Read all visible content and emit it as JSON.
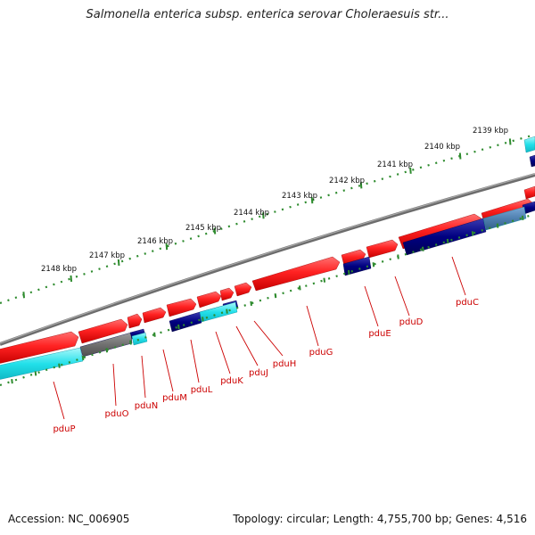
{
  "title": "Salmonella enterica subsp. enterica serovar Choleraesuis str...",
  "footer": {
    "accession": "Accession: NC_006905",
    "summary": "Topology: circular; Length: 4,755,700 bp; Genes: 4,516"
  },
  "colors": {
    "backbone": "#7f7f7f",
    "cds_forward": "#ff2222",
    "cds_reverse": "#000080",
    "blast_light": "#22e0ea",
    "blast_steel": "#4f80b0",
    "other_gray": "#707070",
    "ruler": "#2e8b2e",
    "gene_label": "#cc0000"
  },
  "ruler_labels": [
    "2139 kbp",
    "2140 kbp",
    "2141 kbp",
    "2142 kbp",
    "2143 kbp",
    "2144 kbp",
    "2145 kbp",
    "2146 kbp",
    "2147 kbp",
    "2148 kbp"
  ],
  "genes": [
    "pduP",
    "pduO",
    "pduN",
    "pduM",
    "pduL",
    "pduK",
    "pduJ",
    "pduH",
    "pduG",
    "pduE",
    "pduD",
    "pduC"
  ]
}
